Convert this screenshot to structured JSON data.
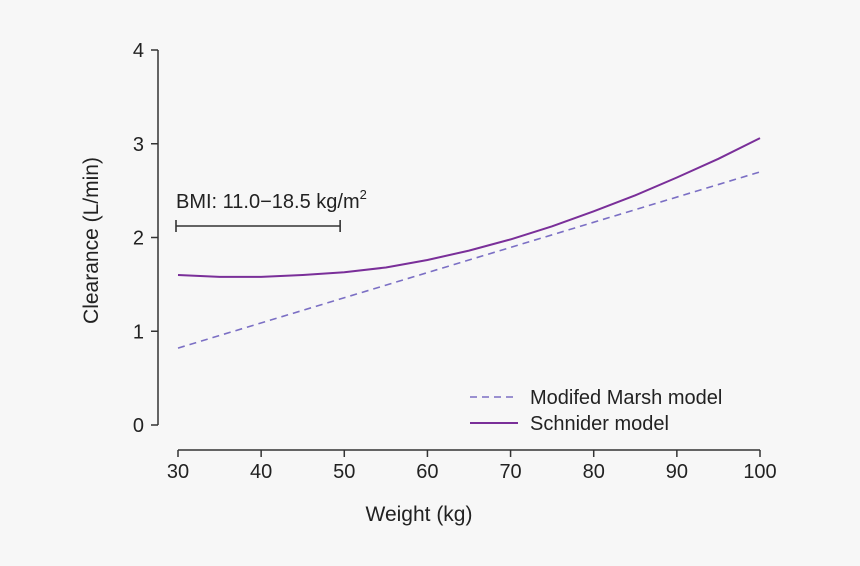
{
  "chart_data": {
    "type": "line",
    "title": "",
    "xlabel": "Weight (kg)",
    "ylabel": "Clearance (L/min)",
    "xlim": [
      30,
      100
    ],
    "ylim": [
      0,
      4
    ],
    "xticks": [
      "30",
      "40",
      "50",
      "60",
      "70",
      "80",
      "90",
      "100"
    ],
    "yticks": [
      "0",
      "1",
      "2",
      "3",
      "4"
    ],
    "grid": false,
    "legend_position": "bottom-right",
    "series": [
      {
        "name": "Modifed Marsh model",
        "style": "dashed",
        "color": "#7b6fc4",
        "x": [
          30,
          100
        ],
        "y": [
          0.82,
          2.7
        ]
      },
      {
        "name": "Schnider model",
        "style": "solid",
        "color": "#7a2f99",
        "x": [
          30,
          35,
          40,
          45,
          50,
          55,
          60,
          65,
          70,
          75,
          80,
          85,
          90,
          95,
          100
        ],
        "y": [
          1.6,
          1.58,
          1.58,
          1.6,
          1.63,
          1.68,
          1.76,
          1.86,
          1.98,
          2.12,
          2.28,
          2.45,
          2.64,
          2.84,
          3.06
        ]
      }
    ],
    "annotations": [
      {
        "text_main": "BMI: 11.0−18.5 kg/m",
        "text_sup": "2",
        "x_range": [
          30,
          49.5
        ],
        "y": 2.1
      }
    ]
  }
}
